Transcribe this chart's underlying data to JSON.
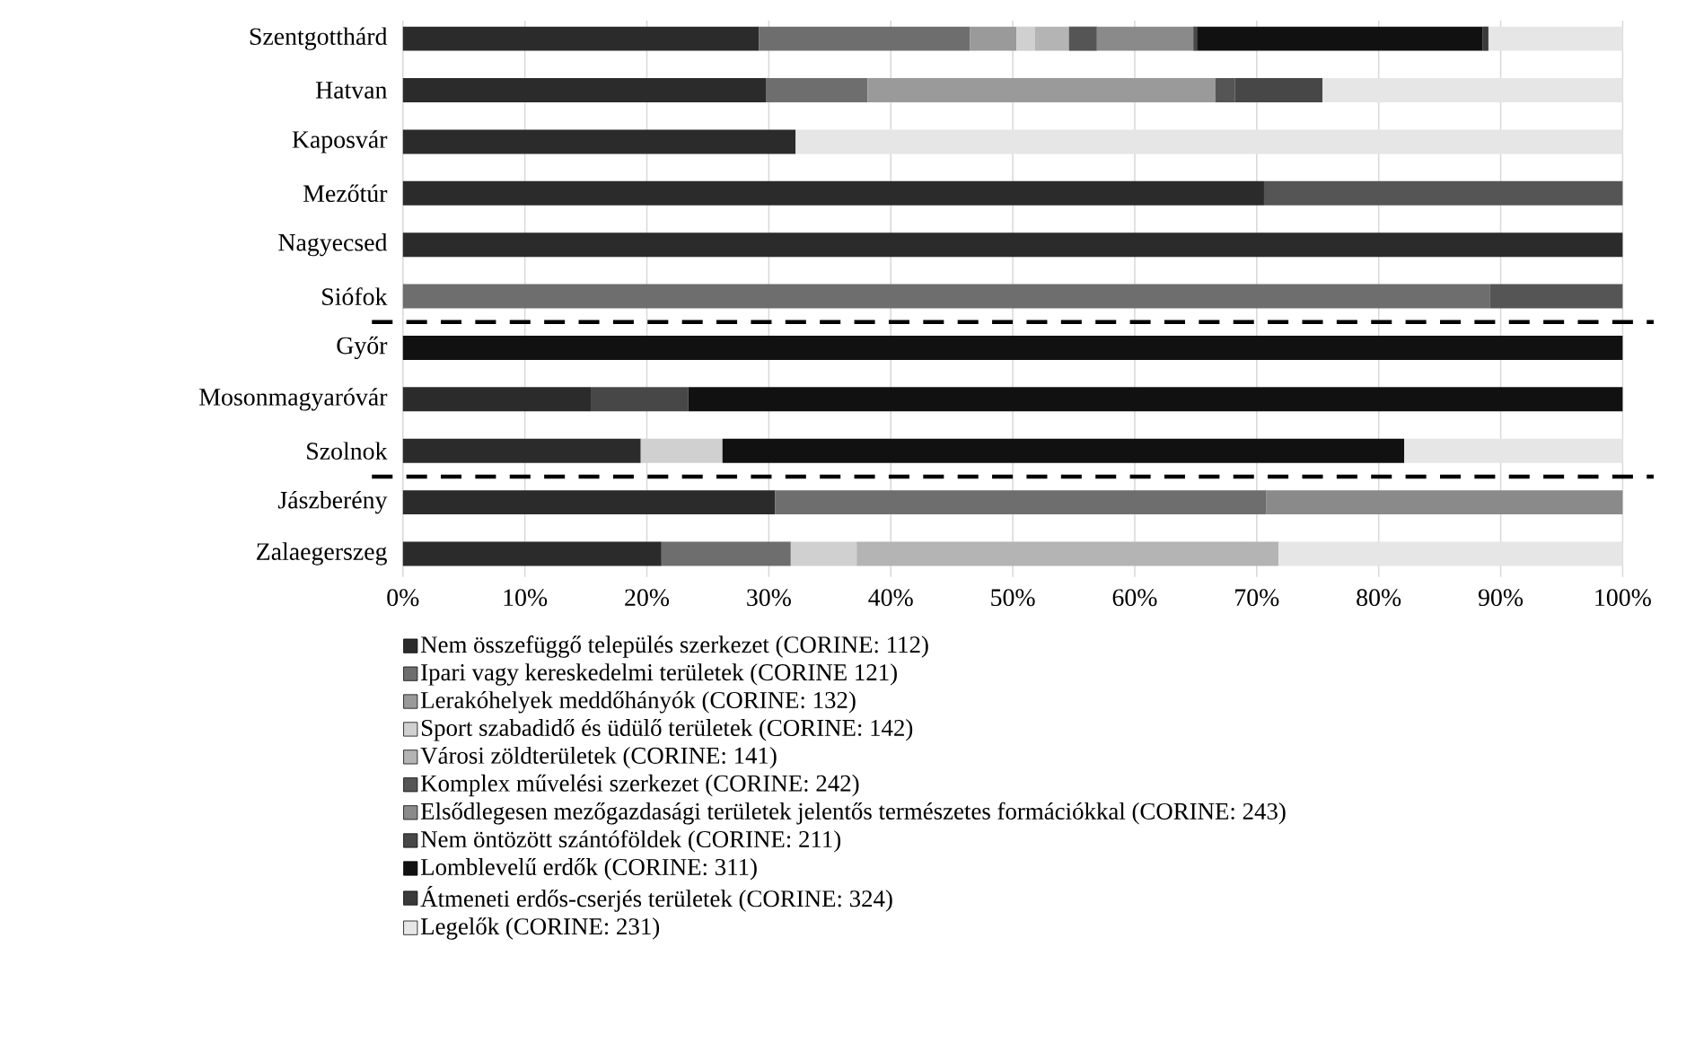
{
  "chart_data": {
    "type": "bar",
    "orientation": "horizontal",
    "stacked": true,
    "categories": [
      "Szentgotthárd",
      "Hatvan",
      "Kaposvár",
      "Mezőtúr",
      "Nagyecsed",
      "Siófok",
      "Győr",
      "Mosonmagyaróvár",
      "Szolnok",
      "Jászberény",
      "Zalaegerszeg"
    ],
    "series": [
      {
        "name": "Nem összefüggő település szerkezet (CORINE: 112)",
        "color": "#2b2b2b",
        "values": [
          29.2,
          29.8,
          32.2,
          70.6,
          100,
          null,
          null,
          15.4,
          19.5,
          30.5,
          21.2
        ]
      },
      {
        "name": "Ipari vagy kereskedelmi területek (CORINE 121)",
        "color": "#6e6e6e",
        "values": [
          17.3,
          8.3,
          null,
          null,
          null,
          89.1,
          null,
          null,
          null,
          40.3,
          10.6
        ]
      },
      {
        "name": "Lerakóhelyek meddőhányók (CORINE: 132)",
        "color": "#9a9a9a",
        "values": [
          3.8,
          28.5,
          null,
          null,
          null,
          null,
          null,
          null,
          null,
          null,
          null
        ]
      },
      {
        "name": "Sport szabadidő és üdülő területek (CORINE: 142)",
        "color": "#d0d0d0",
        "values": [
          1.5,
          null,
          null,
          null,
          null,
          null,
          null,
          null,
          6.7,
          null,
          5.4
        ]
      },
      {
        "name": "Városi zöldterületek (CORINE: 141)",
        "color": "#b4b4b4",
        "values": [
          2.8,
          null,
          null,
          null,
          null,
          null,
          null,
          null,
          null,
          null,
          34.6
        ]
      },
      {
        "name": "Komplex művelési szerkezet (CORINE: 242)",
        "color": "#555555",
        "values": [
          2.3,
          1.6,
          null,
          29.4,
          null,
          10.9,
          null,
          null,
          null,
          null,
          null
        ]
      },
      {
        "name": "Elsődlegesen mezőgazdasági területek jelentős természetes formációkkal (CORINE: 243)",
        "color": "#8a8a8a",
        "values": [
          7.9,
          null,
          null,
          null,
          null,
          null,
          null,
          null,
          null,
          29.2,
          null
        ]
      },
      {
        "name": "Nem öntözött szántóföldek (CORINE: 211)",
        "color": "#474747",
        "values": [
          0.3,
          7.2,
          null,
          null,
          null,
          null,
          null,
          8.0,
          null,
          null,
          null
        ]
      },
      {
        "name": "Lomblevelű erdők (CORINE: 311)",
        "color": "#111111",
        "values": [
          23.4,
          null,
          null,
          null,
          null,
          null,
          100,
          76.6,
          55.9,
          null,
          null
        ]
      },
      {
        "name": "Átmeneti erdős-cserjés területek (CORINE: 324)",
        "color": "#3a3a3a",
        "values": [
          0.5,
          null,
          null,
          null,
          null,
          null,
          null,
          null,
          null,
          null,
          null
        ]
      },
      {
        "name": "Legelők (CORINE: 231)",
        "color": "#e6e6e6",
        "values": [
          11.0,
          24.6,
          67.8,
          null,
          null,
          null,
          null,
          null,
          17.9,
          null,
          28.2
        ]
      }
    ],
    "xlim": [
      0,
      100
    ],
    "xticks": [
      {
        "value": 0,
        "label": "0%"
      },
      {
        "value": 10,
        "label": "10%"
      },
      {
        "value": 20,
        "label": "20%"
      },
      {
        "value": 30,
        "label": "30%"
      },
      {
        "value": 40,
        "label": "40%"
      },
      {
        "value": 50,
        "label": "50%"
      },
      {
        "value": 60,
        "label": "60%"
      },
      {
        "value": 70,
        "label": "70%"
      },
      {
        "value": 80,
        "label": "80%"
      },
      {
        "value": 90,
        "label": "90%"
      },
      {
        "value": 100,
        "label": "100%"
      }
    ],
    "grid": "x",
    "legend": "bottom"
  }
}
